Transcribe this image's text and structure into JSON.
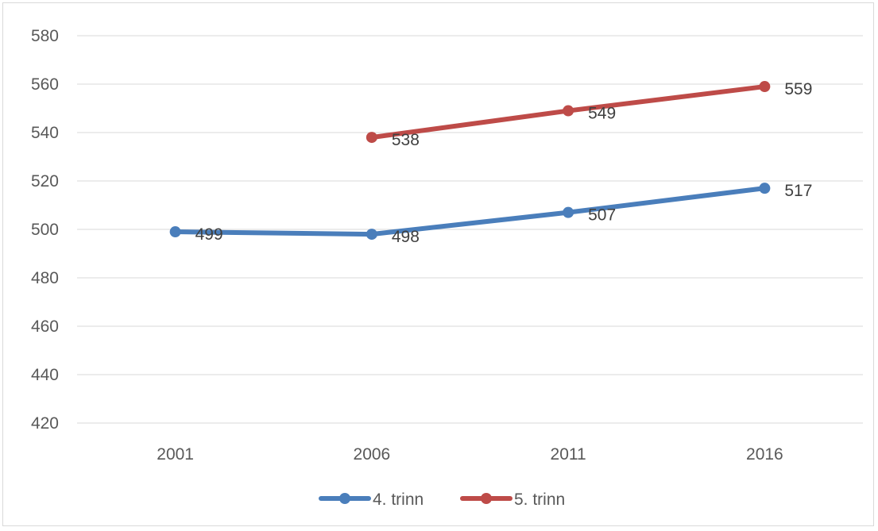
{
  "chart_data": {
    "type": "line",
    "title": "",
    "xlabel": "",
    "ylabel": "",
    "categories": [
      "2001",
      "2006",
      "2011",
      "2016"
    ],
    "ylim": [
      420,
      580
    ],
    "ytick_step": 20,
    "yticks": [
      "420",
      "440",
      "460",
      "480",
      "500",
      "520",
      "540",
      "560",
      "580"
    ],
    "grid": "horizontal",
    "legend_position": "bottom",
    "series": [
      {
        "name": "4. trinn",
        "color": "#4a7ebb",
        "values": [
          499,
          498,
          507,
          517
        ],
        "labels": [
          "499",
          "498",
          "507",
          "517"
        ]
      },
      {
        "name": "5. trinn",
        "color": "#be4b48",
        "values": [
          null,
          538,
          549,
          559
        ],
        "labels": [
          null,
          "538",
          "549",
          "559"
        ]
      }
    ]
  }
}
